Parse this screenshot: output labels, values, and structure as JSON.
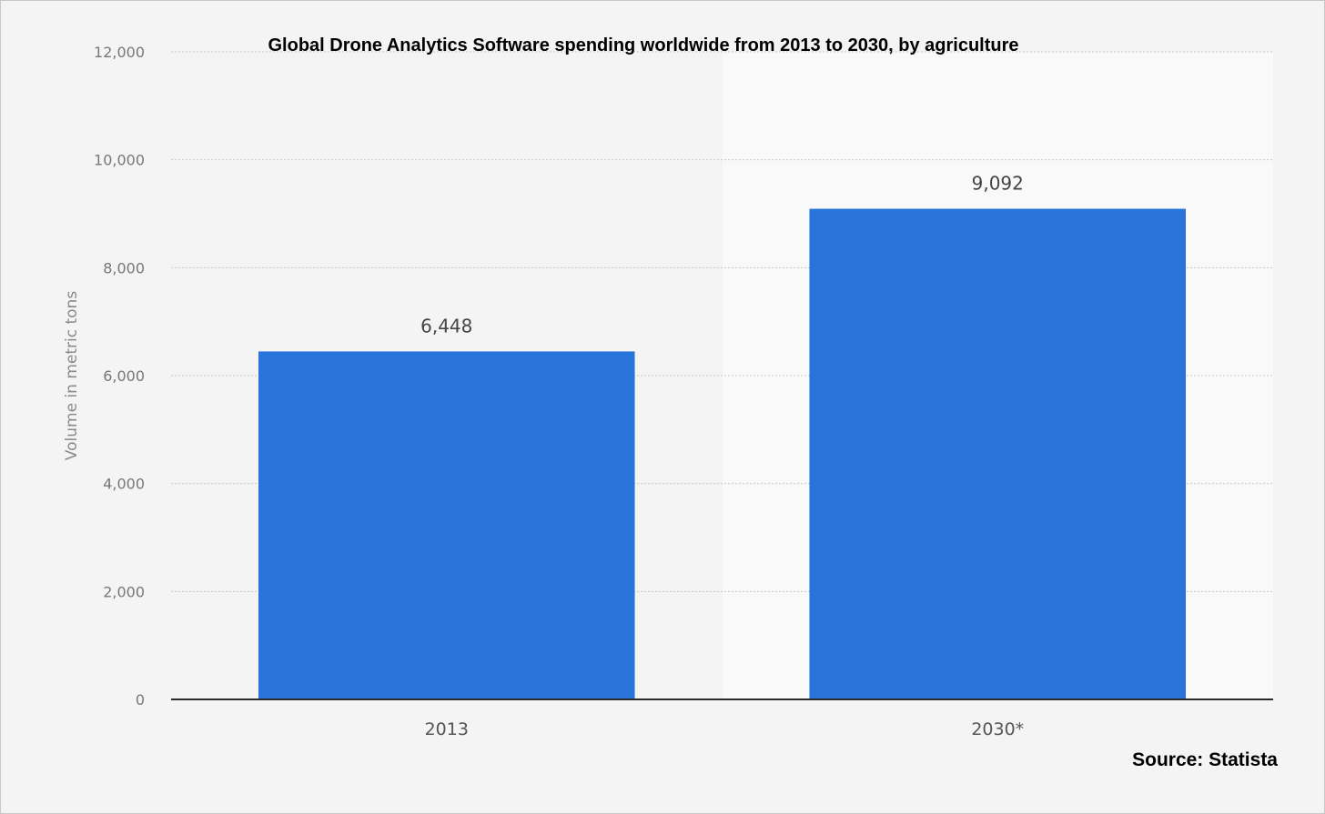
{
  "chart_data": {
    "type": "bar",
    "title": "Global Drone Analytics Software spending worldwide from 2013 to 2030, by agriculture",
    "xlabel": "",
    "ylabel": "Volume in metric tons",
    "categories": [
      "2013",
      "2030*"
    ],
    "values": [
      6448,
      9092
    ],
    "value_labels": [
      "6,448",
      "9,092"
    ],
    "ylim": [
      0,
      12000
    ],
    "yticks": [
      0,
      2000,
      4000,
      6000,
      8000,
      10000,
      12000
    ],
    "ytick_labels": [
      "0",
      "2,000",
      "4,000",
      "6,000",
      "8,000",
      "10,000",
      "12,000"
    ],
    "grid": true,
    "legend": "none",
    "bar_color": "#2874db",
    "source": "Source: Statista"
  }
}
